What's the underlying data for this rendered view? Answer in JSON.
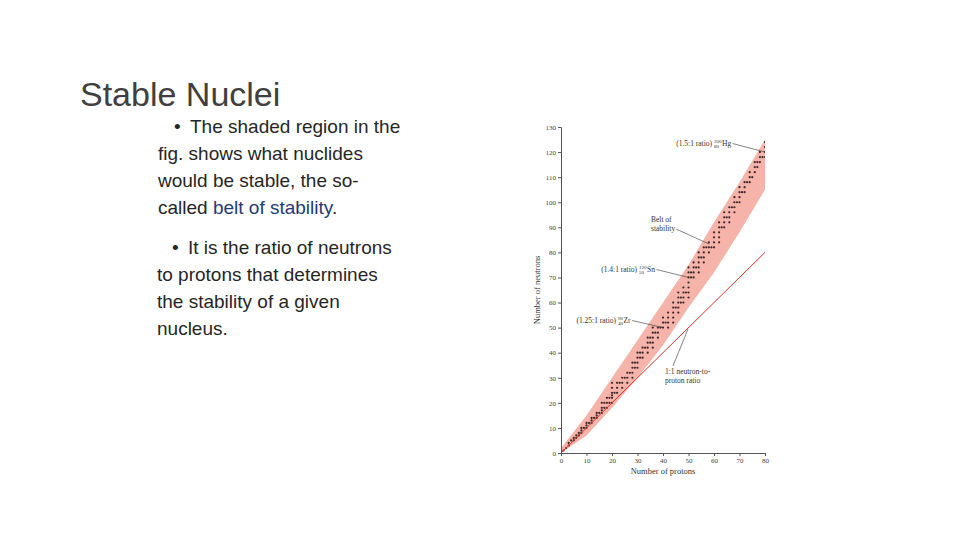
{
  "slide": {
    "title": "Stable Nuclei",
    "bullet": "•",
    "bullets": [
      {
        "lines": [
          [
            {
              "text": "The shaded region in the"
            }
          ],
          [
            {
              "text": "fig. shows what nuclides"
            }
          ],
          [
            {
              "text": "would be stable, the so-"
            }
          ],
          [
            {
              "text": "called "
            },
            {
              "text": "belt of stability",
              "color": "#1f3b73"
            },
            {
              "text": "."
            }
          ]
        ]
      },
      {
        "lines": [
          [
            {
              "text": "It is the ratio of neutrons"
            }
          ],
          [
            {
              "text": "to protons that determines"
            }
          ],
          [
            {
              "text": "the stability of a given"
            }
          ],
          [
            {
              "text": "nucleus."
            }
          ]
        ]
      }
    ]
  },
  "chart_data": {
    "type": "scatter",
    "x_label": "Number of protons",
    "y_label": "Number of neutrons",
    "xlim": [
      0,
      80
    ],
    "ylim": [
      0,
      130
    ],
    "xticks": [
      0,
      10,
      20,
      30,
      40,
      50,
      60,
      70,
      80
    ],
    "yticks": [
      0,
      10,
      20,
      30,
      40,
      50,
      60,
      70,
      80,
      90,
      100,
      110,
      120,
      130
    ],
    "grid": false,
    "series": [
      {
        "type": "area",
        "color": "#f5b3aa",
        "x": [
          0,
          10,
          20,
          30,
          40,
          50,
          60,
          70,
          80
        ],
        "lower": [
          0,
          7,
          18,
          30,
          43,
          58,
          72,
          88,
          105
        ],
        "upper": [
          2,
          15,
          30,
          45,
          60,
          75,
          92,
          108,
          125
        ]
      },
      {
        "type": "scatter",
        "color": "#3b2626",
        "marker": "circle",
        "x": [
          1,
          2,
          3,
          3,
          4,
          5,
          5,
          6,
          6,
          7,
          7,
          8,
          8,
          8,
          9,
          10,
          10,
          10,
          11,
          12,
          12,
          12,
          13,
          14,
          14,
          14,
          15,
          16,
          16,
          16,
          16,
          17,
          17,
          18,
          18,
          18,
          19,
          19,
          20,
          20,
          20,
          20,
          20,
          20,
          21,
          22,
          22,
          22,
          23,
          24,
          24,
          24,
          25,
          26,
          26,
          26,
          27,
          28,
          28,
          28,
          28,
          29,
          29,
          30,
          30,
          30,
          30,
          31,
          31,
          32,
          32,
          32,
          33,
          34,
          34,
          34,
          34,
          35,
          35,
          36,
          36,
          36,
          36,
          36,
          37,
          38,
          38,
          38,
          39,
          40,
          40,
          40,
          41,
          42,
          42,
          42,
          42,
          44,
          44,
          44,
          44,
          44,
          45,
          46,
          46,
          46,
          46,
          46,
          47,
          47,
          48,
          48,
          48,
          48,
          49,
          50,
          50,
          50,
          50,
          50,
          50,
          50,
          51,
          51,
          52,
          52,
          52,
          52,
          53,
          54,
          54,
          54,
          54,
          54,
          55,
          56,
          56,
          56,
          56,
          57,
          58,
          58,
          58,
          59,
          60,
          60,
          60,
          60,
          62,
          62,
          62,
          62,
          62,
          63,
          64,
          64,
          64,
          64,
          65,
          66,
          66,
          66,
          66,
          67,
          68,
          68,
          68,
          68,
          69,
          70,
          70,
          70,
          70,
          71,
          72,
          72,
          72,
          73,
          74,
          74,
          74,
          75,
          76,
          76,
          76,
          77,
          77,
          78,
          78,
          78,
          79,
          80,
          80,
          80,
          80
        ],
        "values": [
          1,
          2,
          3,
          4,
          5,
          5,
          6,
          6,
          7,
          7,
          8,
          8,
          9,
          10,
          10,
          10,
          11,
          12,
          12,
          12,
          13,
          14,
          14,
          14,
          15,
          16,
          16,
          16,
          17,
          18,
          20,
          18,
          20,
          18,
          20,
          22,
          20,
          22,
          20,
          22,
          23,
          24,
          26,
          28,
          24,
          24,
          26,
          28,
          28,
          26,
          28,
          30,
          30,
          28,
          30,
          32,
          32,
          30,
          32,
          34,
          36,
          34,
          36,
          34,
          36,
          38,
          40,
          38,
          40,
          38,
          40,
          42,
          42,
          40,
          42,
          44,
          46,
          44,
          46,
          42,
          44,
          46,
          48,
          50,
          48,
          46,
          48,
          50,
          50,
          50,
          52,
          54,
          52,
          50,
          52,
          54,
          56,
          52,
          54,
          56,
          58,
          60,
          58,
          56,
          58,
          60,
          62,
          64,
          60,
          62,
          60,
          62,
          64,
          66,
          64,
          62,
          64,
          66,
          68,
          70,
          72,
          74,
          70,
          72,
          70,
          72,
          74,
          76,
          74,
          72,
          74,
          76,
          78,
          80,
          78,
          76,
          78,
          80,
          82,
          82,
          80,
          82,
          84,
          82,
          82,
          84,
          86,
          88,
          84,
          86,
          88,
          90,
          92,
          90,
          90,
          92,
          94,
          96,
          94,
          92,
          94,
          96,
          98,
          98,
          96,
          98,
          100,
          102,
          100,
          100,
          102,
          104,
          106,
          104,
          104,
          106,
          108,
          108,
          108,
          110,
          112,
          110,
          112,
          114,
          116,
          114,
          116,
          116,
          118,
          120,
          118,
          118,
          120,
          122,
          124
        ]
      },
      {
        "type": "line",
        "color": "#d9342b",
        "line_style": "solid",
        "x": [
          0,
          80
        ],
        "values": [
          0,
          80
        ]
      }
    ],
    "annotations": [
      {
        "lines": [
          "Belt of",
          "stability"
        ]
      },
      {
        "lines": [
          "1:1 neutron-to-",
          "proton ratio"
        ]
      },
      {
        "text": "(1.5:1 ratio)",
        "mass_number": 200,
        "atomic_number": 80,
        "symbol": "Hg",
        "x": 80,
        "y": 120
      },
      {
        "text": "(1.4:1 ratio)",
        "mass_number": 120,
        "atomic_number": 50,
        "symbol": "Sn",
        "x": 50,
        "y": 70
      },
      {
        "text": "(1.25:1 ratio)",
        "mass_number": 90,
        "atomic_number": 40,
        "symbol": "Zr",
        "x": 40,
        "y": 50
      }
    ]
  }
}
